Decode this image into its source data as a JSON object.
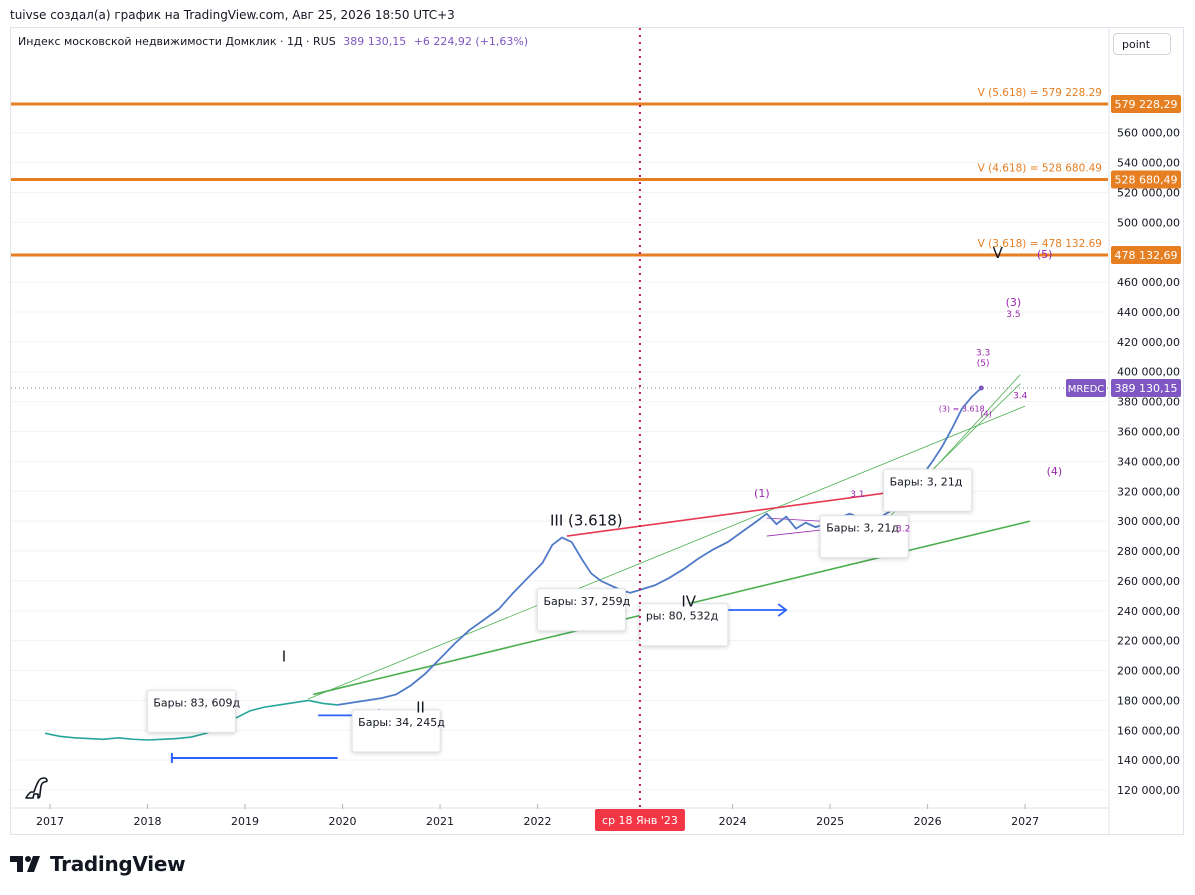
{
  "header": {
    "caption": "tuivse создал(а) график на TradingView.com, Авг 25, 2026 18:50 UTC+3"
  },
  "legend": {
    "symbol": "Индекс московской недвижимости Домклик · 1Д · RUS",
    "value": "389 130,15",
    "change": "+6 224,92 (+1,63%)"
  },
  "scale_button": {
    "label": "point"
  },
  "colors": {
    "price": "#4f7ac7",
    "price_early": "#26a69a",
    "fib": "#e67e22",
    "label_purple": "#9c27b0",
    "trend_green": "#4caf50",
    "trend_red": "#e53950",
    "arrow_blue": "#2962ff",
    "crosshair": "#c2185b",
    "badge_purple": "#7e57c2"
  },
  "footer": {
    "brand": "TradingView",
    "icon": "tradingview-logo-icon"
  },
  "chart_data": {
    "type": "line",
    "symbol": "MREDC",
    "x_range": [
      2016.6,
      2027.85
    ],
    "ylim": [
      110000,
      610000
    ],
    "y_ticks": [
      {
        "v": 560000,
        "label": "560 000,00"
      },
      {
        "v": 540000,
        "label": "540 000,00"
      },
      {
        "v": 520000,
        "label": "520 000,00"
      },
      {
        "v": 500000,
        "label": "500 000,00"
      },
      {
        "v": 460000,
        "label": "460 000,00"
      },
      {
        "v": 440000,
        "label": "440 000,00"
      },
      {
        "v": 420000,
        "label": "420 000,00"
      },
      {
        "v": 400000,
        "label": "400 000,00"
      },
      {
        "v": 380000,
        "label": "380 000,00"
      },
      {
        "v": 360000,
        "label": "360 000,00"
      },
      {
        "v": 340000,
        "label": "340 000,00"
      },
      {
        "v": 320000,
        "label": "320 000,00"
      },
      {
        "v": 300000,
        "label": "300 000,00"
      },
      {
        "v": 280000,
        "label": "280 000,00"
      },
      {
        "v": 260000,
        "label": "260 000,00"
      },
      {
        "v": 240000,
        "label": "240 000,00"
      },
      {
        "v": 220000,
        "label": "220 000,00"
      },
      {
        "v": 200000,
        "label": "200 000,00"
      },
      {
        "v": 180000,
        "label": "180 000,00"
      },
      {
        "v": 160000,
        "label": "160 000,00"
      },
      {
        "v": 140000,
        "label": "140 000,00"
      },
      {
        "v": 120000,
        "label": "120 000,00"
      }
    ],
    "x_ticks": [
      {
        "t": 2017.0,
        "label": "2017"
      },
      {
        "t": 2018.0,
        "label": "2018"
      },
      {
        "t": 2019.0,
        "label": "2019"
      },
      {
        "t": 2020.0,
        "label": "2020"
      },
      {
        "t": 2021.0,
        "label": "2021"
      },
      {
        "t": 2022.0,
        "label": "2022"
      },
      {
        "t": 2024.0,
        "label": "2024"
      },
      {
        "t": 2025.0,
        "label": "2025"
      },
      {
        "t": 2026.0,
        "label": "2026"
      },
      {
        "t": 2027.0,
        "label": "2027"
      }
    ],
    "crosshair": {
      "t": 2023.05,
      "x_label": "ср 18 Янв '23",
      "value": 389130.15,
      "price_label": "389 130,15",
      "symbol_label": "MREDC"
    },
    "fib_levels": [
      {
        "v": 579228.29,
        "label": "V (5.618) = 579 228.29",
        "badge": "579 228,29"
      },
      {
        "v": 528680.49,
        "label": "V (4.618) = 528 680.49",
        "badge": "528 680,49"
      },
      {
        "v": 478132.69,
        "label": "V (3.618) = 478 132.69",
        "badge": "478 132,69"
      }
    ],
    "series": [
      {
        "points": [
          [
            2016.95,
            158000
          ],
          [
            2017.1,
            156000
          ],
          [
            2017.25,
            155000
          ],
          [
            2017.4,
            154500
          ],
          [
            2017.55,
            154000
          ],
          [
            2017.7,
            155000
          ],
          [
            2017.85,
            154000
          ],
          [
            2018.0,
            153500
          ],
          [
            2018.15,
            154000
          ],
          [
            2018.3,
            154500
          ],
          [
            2018.45,
            155500
          ],
          [
            2018.6,
            158000
          ],
          [
            2018.75,
            162000
          ],
          [
            2018.9,
            168000
          ],
          [
            2019.05,
            173000
          ],
          [
            2019.2,
            175500
          ],
          [
            2019.35,
            177000
          ],
          [
            2019.5,
            178500
          ],
          [
            2019.65,
            180000
          ],
          [
            2019.8,
            178000
          ],
          [
            2019.95,
            177000
          ],
          [
            2020.1,
            178500
          ],
          [
            2020.25,
            180000
          ],
          [
            2020.4,
            181500
          ],
          [
            2020.55,
            184000
          ],
          [
            2020.7,
            190000
          ],
          [
            2020.85,
            198000
          ],
          [
            2021.0,
            208000
          ],
          [
            2021.15,
            218000
          ],
          [
            2021.3,
            227000
          ],
          [
            2021.45,
            234000
          ],
          [
            2021.6,
            241000
          ],
          [
            2021.75,
            252000
          ],
          [
            2021.9,
            262000
          ],
          [
            2022.05,
            272000
          ],
          [
            2022.15,
            284000
          ],
          [
            2022.25,
            289000
          ],
          [
            2022.35,
            286000
          ],
          [
            2022.45,
            275000
          ],
          [
            2022.55,
            265000
          ],
          [
            2022.65,
            260000
          ],
          [
            2022.75,
            257000
          ],
          [
            2022.85,
            254000
          ],
          [
            2022.95,
            252000
          ],
          [
            2023.05,
            254000
          ],
          [
            2023.2,
            257000
          ],
          [
            2023.35,
            262000
          ],
          [
            2023.5,
            268000
          ],
          [
            2023.65,
            275000
          ],
          [
            2023.8,
            281000
          ],
          [
            2023.95,
            286000
          ],
          [
            2024.1,
            293000
          ],
          [
            2024.25,
            300000
          ],
          [
            2024.35,
            305000
          ],
          [
            2024.45,
            298000
          ],
          [
            2024.55,
            303000
          ],
          [
            2024.65,
            295000
          ],
          [
            2024.75,
            299000
          ],
          [
            2024.85,
            296000
          ],
          [
            2024.95,
            298000
          ],
          [
            2025.05,
            301000
          ],
          [
            2025.2,
            305000
          ],
          [
            2025.35,
            301000
          ],
          [
            2025.45,
            300000
          ],
          [
            2025.55,
            304000
          ],
          [
            2025.65,
            308000
          ],
          [
            2025.75,
            316000
          ],
          [
            2025.85,
            322000
          ],
          [
            2025.95,
            331000
          ],
          [
            2026.05,
            340000
          ],
          [
            2026.15,
            350000
          ],
          [
            2026.25,
            362000
          ],
          [
            2026.35,
            375000
          ],
          [
            2026.45,
            383000
          ],
          [
            2026.55,
            389130
          ]
        ]
      }
    ],
    "trendlines": [
      {
        "from": [
          2019.7,
          184000
        ],
        "to": [
          2027.05,
          300000
        ],
        "color": "trend_green",
        "width": 1.6
      },
      {
        "from": [
          2019.65,
          181000
        ],
        "to": [
          2027.0,
          377000
        ],
        "color": "trend_green",
        "width": 0.8
      },
      {
        "from": [
          2025.6,
          302000
        ],
        "to": [
          2026.95,
          398000
        ],
        "color": "trend_green",
        "width": 0.8
      },
      {
        "from": [
          2025.7,
          312000
        ],
        "to": [
          2026.95,
          392000
        ],
        "color": "trend_green",
        "width": 0.8
      },
      {
        "from": [
          2022.3,
          290000
        ],
        "to": [
          2025.7,
          320000
        ],
        "color": "trend_red",
        "width": 1.6
      }
    ],
    "triangle": [
      [
        2024.35,
        302000
      ],
      [
        2025.45,
        298000
      ],
      [
        2024.35,
        290000
      ],
      [
        2025.45,
        298000
      ]
    ],
    "arrows": [
      {
        "from": [
          2022.35,
          251000
        ],
        "to": [
          2022.85,
          251000
        ]
      },
      {
        "from": [
          2023.4,
          240500
        ],
        "to": [
          2024.55,
          240500
        ]
      },
      {
        "from": [
          2019.75,
          170000
        ],
        "to": [
          2020.45,
          170000
        ]
      }
    ],
    "bars_range": {
      "from": [
        2018.25,
        141500
      ],
      "to": [
        2019.95,
        141500
      ]
    },
    "wave_labels": [
      {
        "t": 2019.4,
        "v": 206000,
        "text": "I",
        "size": 15,
        "color": "#131722"
      },
      {
        "t": 2020.8,
        "v": 172000,
        "text": "II",
        "size": 15,
        "color": "#131722"
      },
      {
        "t": 2022.5,
        "v": 297000,
        "text": "III (3.618)",
        "size": 15,
        "color": "#131722"
      },
      {
        "t": 2023.55,
        "v": 243000,
        "text": "IV",
        "size": 15,
        "color": "#131722"
      },
      {
        "t": 2026.72,
        "v": 476000,
        "text": "V",
        "size": 15,
        "color": "#131722"
      },
      {
        "t": 2027.2,
        "v": 476000,
        "text": "(5)",
        "size": 11,
        "color": "#9c27b0"
      },
      {
        "t": 2026.88,
        "v": 444000,
        "text": "(3)",
        "size": 11,
        "color": "#9c27b0"
      },
      {
        "t": 2026.88,
        "v": 436500,
        "text": "3.5",
        "size": 9,
        "color": "#9c27b0"
      },
      {
        "t": 2026.57,
        "v": 411000,
        "text": "3.3",
        "size": 9,
        "color": "#9c27b0"
      },
      {
        "t": 2026.57,
        "v": 404000,
        "text": "(5)",
        "size": 9,
        "color": "#9c27b0"
      },
      {
        "t": 2026.95,
        "v": 382000,
        "text": "3.4",
        "size": 9,
        "color": "#9c27b0"
      },
      {
        "t": 2026.35,
        "v": 373500,
        "text": "(3) = 3.618",
        "size": 8,
        "color": "#9c27b0"
      },
      {
        "t": 2026.6,
        "v": 370000,
        "text": "(4)",
        "size": 8,
        "color": "#9c27b0"
      },
      {
        "t": 2027.3,
        "v": 331000,
        "text": "(4)",
        "size": 11,
        "color": "#9c27b0"
      },
      {
        "t": 2024.3,
        "v": 316000,
        "text": "(1)",
        "size": 11,
        "color": "#9c27b0"
      },
      {
        "t": 2025.28,
        "v": 316000,
        "text": "3.1",
        "size": 9,
        "color": "#9c27b0"
      },
      {
        "t": 2025.75,
        "v": 293000,
        "text": "3.2",
        "size": 9,
        "color": "#9c27b0"
      }
    ],
    "bar_boxes": [
      {
        "t": 2018.45,
        "v": 176000,
        "text": "Бары: 83, 609д"
      },
      {
        "t": 2020.55,
        "v": 163000,
        "text": "Бары: 34, 245д"
      },
      {
        "t": 2022.45,
        "v": 244000,
        "text": "Бары: 37, 259д"
      },
      {
        "t": 2023.5,
        "v": 234000,
        "text": "ры: 80, 532д"
      },
      {
        "t": 2026.0,
        "v": 324000,
        "text": "Бары: 3, 21д"
      },
      {
        "t": 2025.35,
        "v": 293000,
        "text": "Бары: 3, 21д"
      }
    ]
  }
}
